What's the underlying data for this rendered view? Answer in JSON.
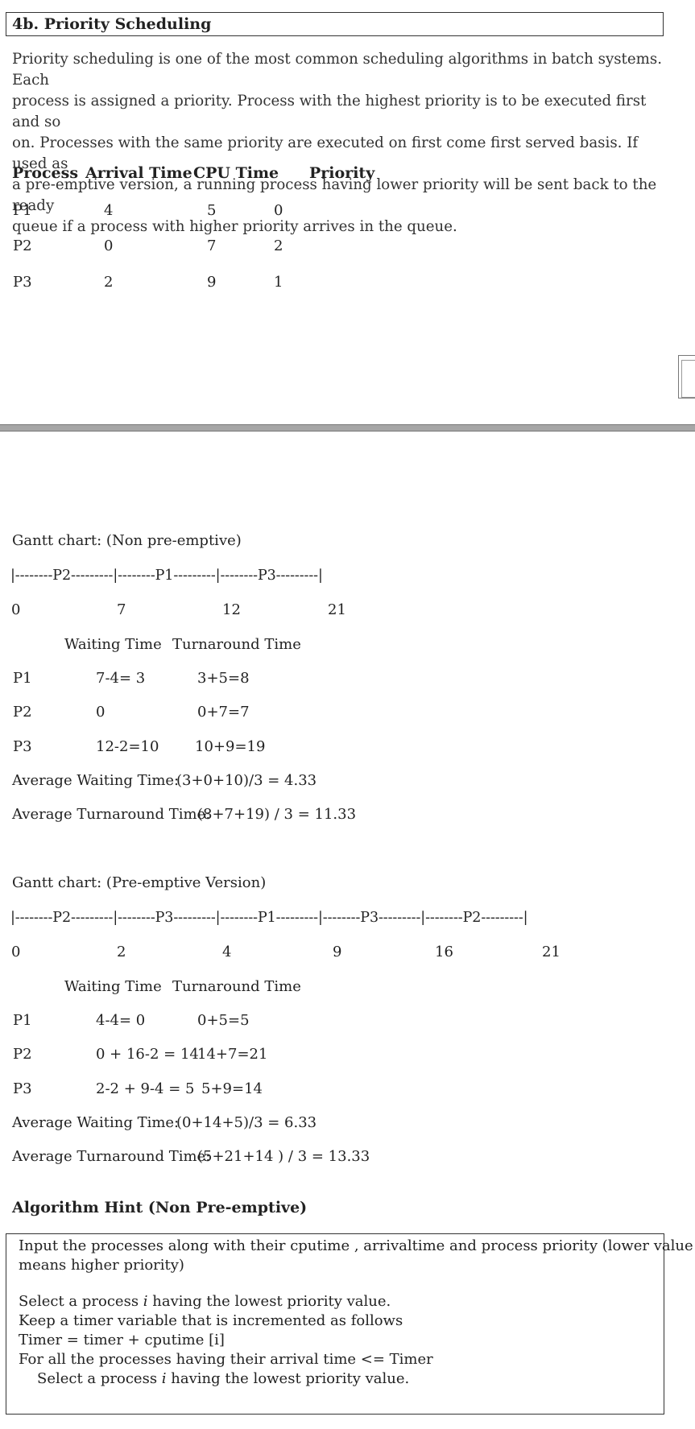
{
  "title": "4b. Priority Scheduling",
  "intro_lines": [
    "Priority scheduling is one of the most common scheduling algorithms in batch systems.  Each",
    "process is assigned a priority. Process with the highest priority is to be executed first and so",
    "on. Processes with the same priority are executed on first come first served basis. If used as",
    "a pre-emptive version, a running process having lower priority will be sent back to the ready",
    "queue if a process with higher priority arrives in the queue."
  ],
  "process_table": {
    "headers": [
      "Process",
      "Arrival Time",
      "CPU Time",
      "Priority"
    ],
    "rows": [
      [
        "P1",
        "4",
        "5",
        "0"
      ],
      [
        "P2",
        "0",
        "7",
        "2"
      ],
      [
        "P3",
        "2",
        "9",
        "1"
      ]
    ]
  },
  "non_preemptive": {
    "heading": "Gantt chart: (Non pre-emptive)",
    "gantt": "|--------P2---------|--------P1---------|--------P3---------|",
    "ticks": [
      "0",
      "7",
      "12",
      "21"
    ],
    "col_headers": [
      "Waiting Time",
      "Turnaround Time"
    ],
    "rows": [
      [
        "P1",
        "7-4= 3",
        "3+5=8"
      ],
      [
        "P2",
        "0",
        "0+7=7"
      ],
      [
        "P3",
        "12-2=10",
        "10+9=19"
      ]
    ],
    "avg_waiting_label": "Average Waiting Time:",
    "avg_waiting_value": "(3+0+10)/3  = 4.33",
    "avg_turnaround_label": "Average Turnaround Time:",
    "avg_turnaround_value": "(8+7+19) / 3 = 11.33"
  },
  "preemptive": {
    "heading": "Gantt chart: (Pre-emptive Version)",
    "gantt": "|--------P2---------|--------P3---------|--------P1---------|--------P3---------|--------P2---------|",
    "ticks": [
      "0",
      "2",
      "4",
      "9",
      "16",
      "21"
    ],
    "col_headers": [
      "Waiting Time",
      "Turnaround Time"
    ],
    "rows": [
      [
        "P1",
        "4-4= 0",
        "0+5=5"
      ],
      [
        "P2",
        "0 + 16-2 = 14",
        "14+7=21"
      ],
      [
        "P3",
        "2-2 + 9-4 = 5",
        "5+9=14"
      ]
    ],
    "avg_waiting_label": "Average Waiting Time:",
    "avg_waiting_value": "(0+14+5)/3  = 6.33",
    "avg_turnaround_label": "Average Turnaround Time:",
    "avg_turnaround_value": "(5+21+14 ) / 3 = 13.33"
  },
  "hint": {
    "heading": "Algorithm Hint (Non Pre-emptive)",
    "line1": "Input the processes along with their cputime ,  arrivaltime and process priority (lower value",
    "line2": "means higher priority)",
    "line3_pre": "Select a process ",
    "line3_var": "i",
    "line3_post": " having the lowest priority value.",
    "line4": "Keep a timer variable that is incremented as follows",
    "line5": "Timer = timer + cputime [i]",
    "line6": "For all the processes having their arrival time <= Timer",
    "line7_pre": "Select a process ",
    "line7_var": "i",
    "line7_post": " having the lowest priority value."
  }
}
